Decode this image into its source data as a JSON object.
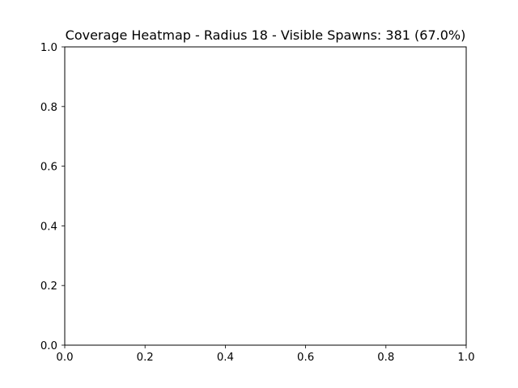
{
  "chart_data": {
    "type": "heatmap",
    "title": "Coverage Heatmap - Radius 18 - Visible Spawns: 381 (67.0%)",
    "xlabel": "",
    "ylabel": "",
    "xlim": [
      0.0,
      1.0
    ],
    "ylim": [
      0.0,
      1.0
    ],
    "x_ticks": [
      "0.0",
      "0.2",
      "0.4",
      "0.6",
      "0.8",
      "1.0"
    ],
    "y_ticks": [
      "0.0",
      "0.2",
      "0.4",
      "0.6",
      "0.8",
      "1.0"
    ],
    "grid": false,
    "series": []
  },
  "colors": {
    "background": "#ffffff",
    "axes": "#000000"
  }
}
